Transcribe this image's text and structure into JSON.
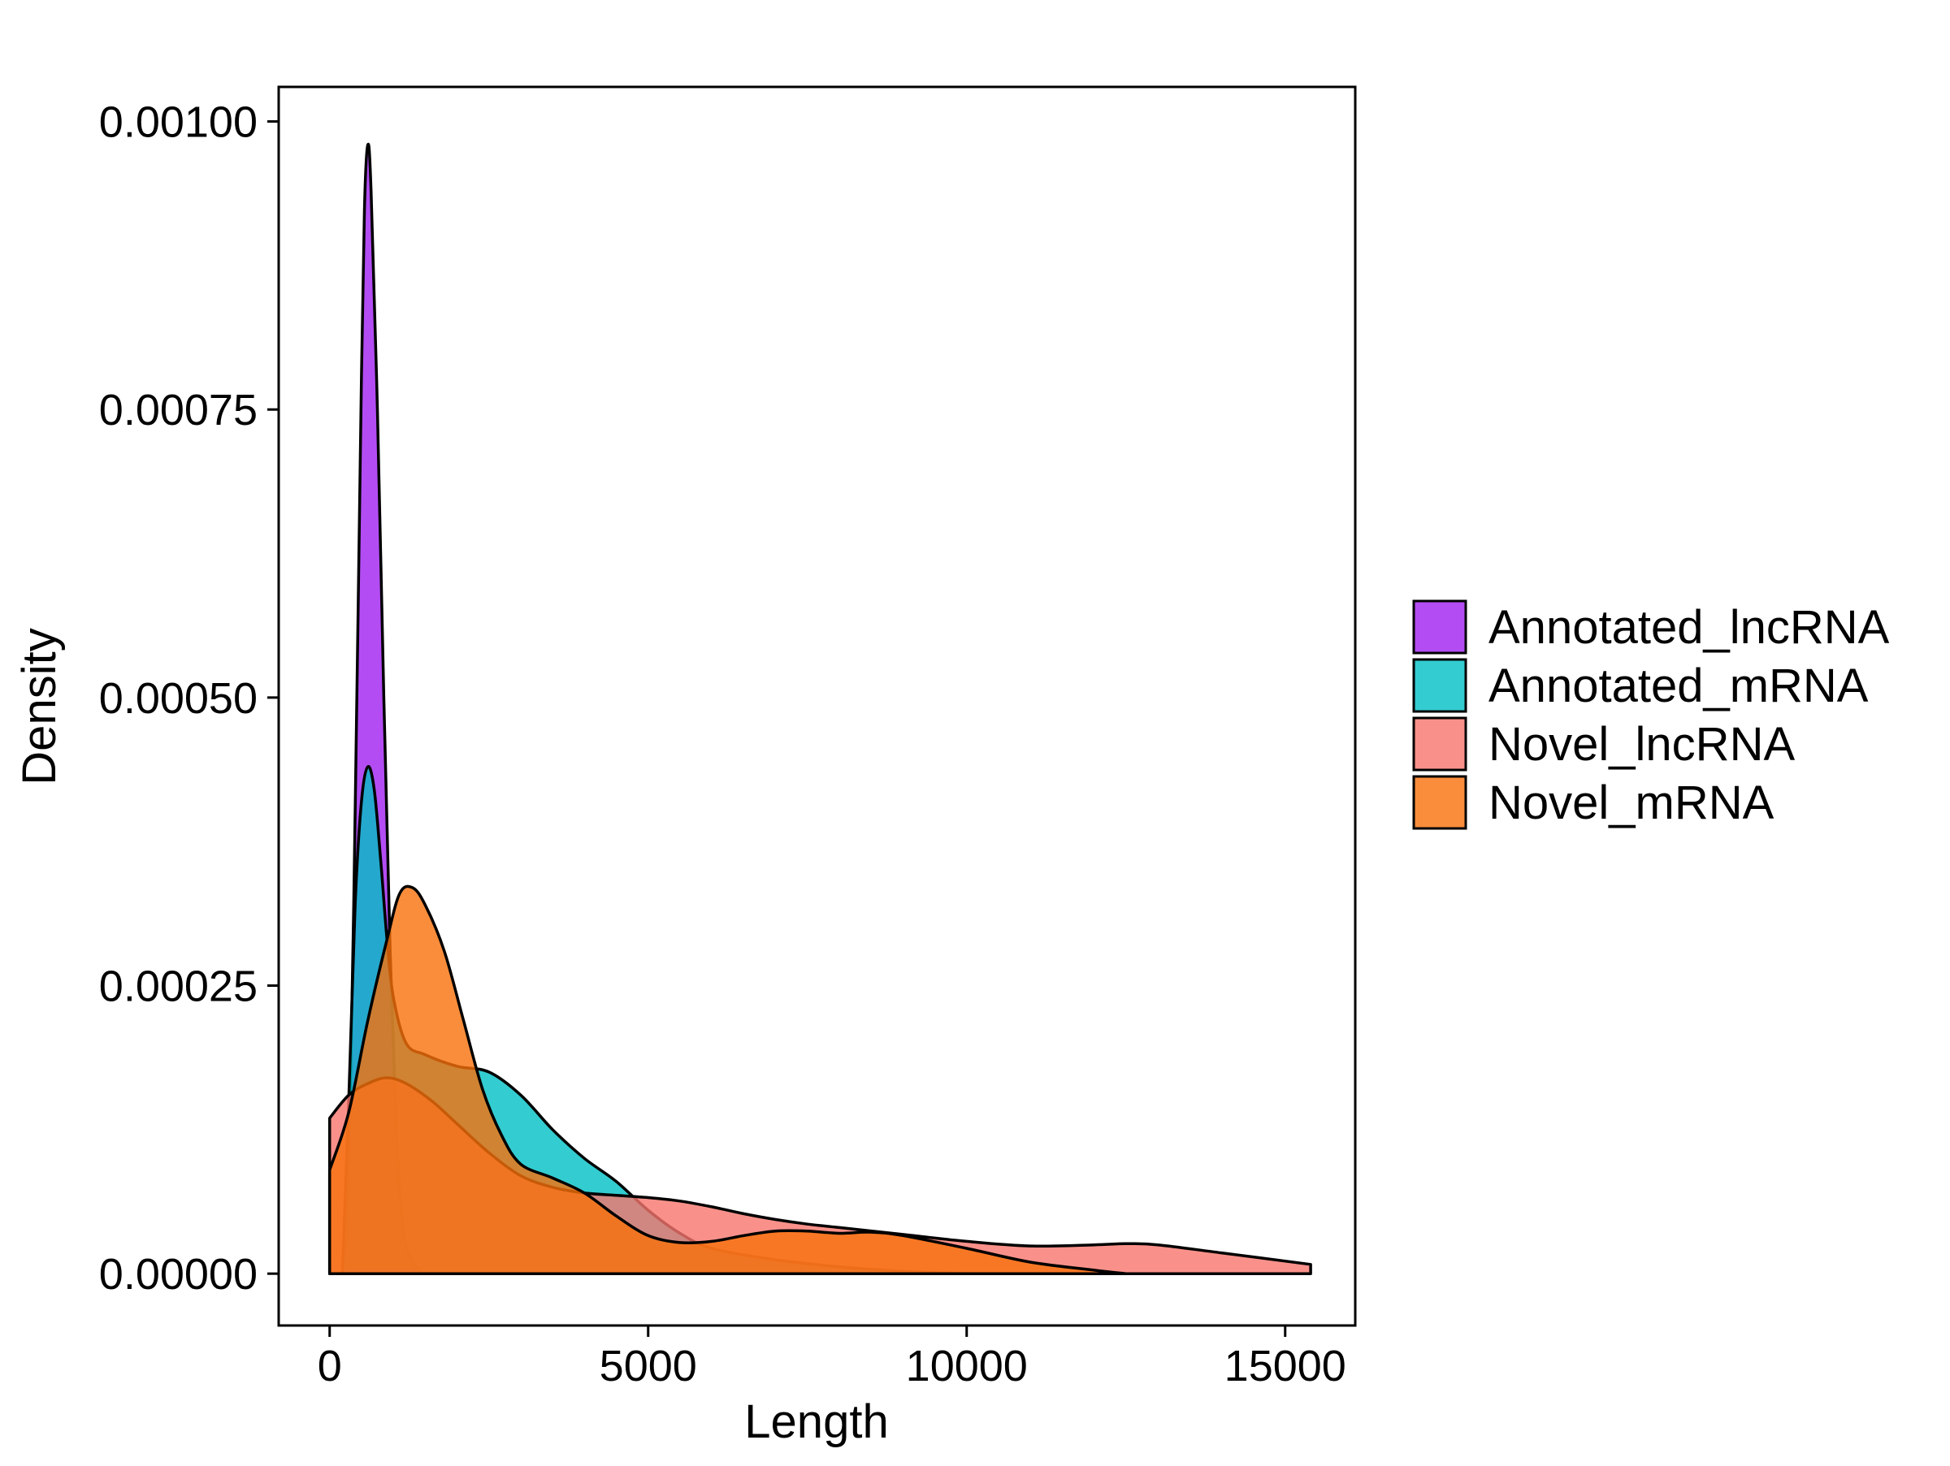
{
  "chart_data": {
    "type": "area",
    "subtype": "density",
    "title": "",
    "xlabel": "Length",
    "ylabel": "Density",
    "xlim": [
      -800,
      16100
    ],
    "ylim": [
      -4.5e-05,
      0.00103
    ],
    "x_ticks": [
      0,
      5000,
      10000,
      15000
    ],
    "x_tick_labels": [
      "0",
      "5000",
      "10000",
      "15000"
    ],
    "y_ticks": [
      0,
      0.00025,
      0.0005,
      0.00075,
      0.001
    ],
    "y_tick_labels": [
      "0.00000",
      "0.00025",
      "0.00050",
      "0.00075",
      "0.00100"
    ],
    "grid": false,
    "legend_position": "right",
    "series": [
      {
        "name": "Annotated_lncRNA",
        "color": "#A020F0",
        "points": [
          [
            200,
            0
          ],
          [
            300,
            8e-05
          ],
          [
            400,
            0.0004
          ],
          [
            500,
            0.00078
          ],
          [
            550,
            0.00093
          ],
          [
            600,
            0.00098
          ],
          [
            650,
            0.00094
          ],
          [
            750,
            0.00075
          ],
          [
            850,
            0.0005
          ],
          [
            950,
            0.00028
          ],
          [
            1050,
            0.00012
          ],
          [
            1150,
            4e-05
          ],
          [
            1300,
            1e-05
          ],
          [
            1500,
            0
          ]
        ]
      },
      {
        "name": "Annotated_mRNA",
        "color": "#00BFC4",
        "points": [
          [
            200,
            0
          ],
          [
            300,
            0.00015
          ],
          [
            400,
            0.00032
          ],
          [
            500,
            0.00041
          ],
          [
            600,
            0.00044
          ],
          [
            700,
            0.00042
          ],
          [
            800,
            0.00036
          ],
          [
            900,
            0.00029
          ],
          [
            1000,
            0.00024
          ],
          [
            1200,
            0.0002
          ],
          [
            1500,
            0.00019
          ],
          [
            2000,
            0.00018
          ],
          [
            2500,
            0.000175
          ],
          [
            3000,
            0.000155
          ],
          [
            3500,
            0.000125
          ],
          [
            4000,
            0.0001
          ],
          [
            4500,
            8e-05
          ],
          [
            5000,
            5.5e-05
          ],
          [
            5500,
            3.5e-05
          ],
          [
            6000,
            2.2e-05
          ],
          [
            7000,
            1.2e-05
          ],
          [
            8000,
            6e-06
          ],
          [
            9000,
            2e-06
          ],
          [
            10000,
            0
          ]
        ]
      },
      {
        "name": "Novel_lncRNA",
        "color": "#F8766D",
        "points": [
          [
            0,
            0.000135
          ],
          [
            300,
            0.000155
          ],
          [
            600,
            0.000165
          ],
          [
            900,
            0.00017
          ],
          [
            1200,
            0.000165
          ],
          [
            1600,
            0.00015
          ],
          [
            2000,
            0.00013
          ],
          [
            2500,
            0.000105
          ],
          [
            3000,
            8.5e-05
          ],
          [
            3500,
            7.5e-05
          ],
          [
            4000,
            7e-05
          ],
          [
            4500,
            6.8e-05
          ],
          [
            5000,
            6.6e-05
          ],
          [
            5500,
            6.3e-05
          ],
          [
            6000,
            5.8e-05
          ],
          [
            6500,
            5.2e-05
          ],
          [
            7000,
            4.7e-05
          ],
          [
            7500,
            4.3e-05
          ],
          [
            8000,
            4e-05
          ],
          [
            9000,
            3.4e-05
          ],
          [
            10000,
            2.8e-05
          ],
          [
            11000,
            2.4e-05
          ],
          [
            12000,
            2.5e-05
          ],
          [
            12500,
            2.6e-05
          ],
          [
            13000,
            2.5e-05
          ],
          [
            14000,
            1.8e-05
          ],
          [
            15400,
            8e-06
          ]
        ]
      },
      {
        "name": "Novel_mRNA",
        "color": "#F8700A",
        "points": [
          [
            0,
            9e-05
          ],
          [
            300,
            0.00014
          ],
          [
            600,
            0.00022
          ],
          [
            900,
            0.00029
          ],
          [
            1100,
            0.00033
          ],
          [
            1300,
            0.000335
          ],
          [
            1500,
            0.00032
          ],
          [
            1800,
            0.00028
          ],
          [
            2100,
            0.00022
          ],
          [
            2400,
            0.00016
          ],
          [
            2700,
            0.00012
          ],
          [
            3000,
            9.5e-05
          ],
          [
            3500,
            8.3e-05
          ],
          [
            4000,
            7e-05
          ],
          [
            4500,
            5e-05
          ],
          [
            5000,
            3.3e-05
          ],
          [
            5500,
            2.7e-05
          ],
          [
            6000,
            2.8e-05
          ],
          [
            6500,
            3.3e-05
          ],
          [
            7000,
            3.7e-05
          ],
          [
            7500,
            3.7e-05
          ],
          [
            8000,
            3.5e-05
          ],
          [
            8500,
            3.6e-05
          ],
          [
            9000,
            3.3e-05
          ],
          [
            10000,
            2.2e-05
          ],
          [
            11000,
            1e-05
          ],
          [
            12000,
            3e-06
          ],
          [
            12500,
            0
          ]
        ]
      }
    ]
  }
}
